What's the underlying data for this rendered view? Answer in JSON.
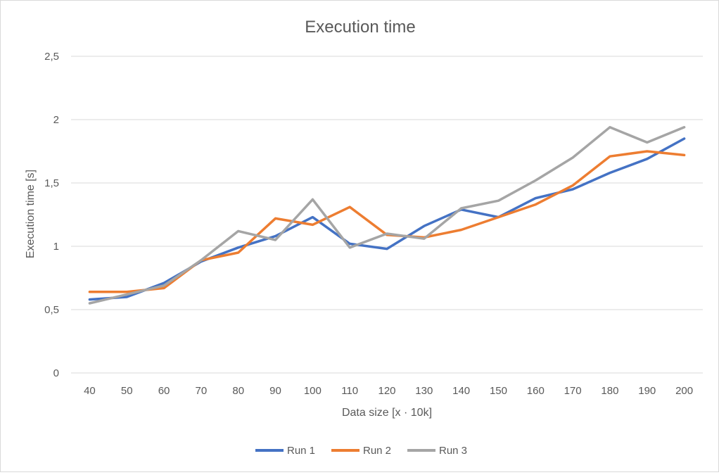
{
  "chart_data": {
    "type": "line",
    "title": "Execution time",
    "xlabel": "Data size [x · 10k]",
    "ylabel": "Execution time [s]",
    "categories": [
      "40",
      "50",
      "60",
      "70",
      "80",
      "90",
      "100",
      "110",
      "120",
      "130",
      "140",
      "150",
      "160",
      "170",
      "180",
      "190",
      "200"
    ],
    "y_ticks": [
      "0",
      "0,5",
      "1",
      "1,5",
      "2",
      "2,5"
    ],
    "y_tick_values": [
      0,
      0.5,
      1,
      1.5,
      2,
      2.5
    ],
    "ylim": [
      0,
      2.5
    ],
    "grid": "horizontal",
    "legend": "bottom",
    "series": [
      {
        "name": "Run 1",
        "color": "#4472C4",
        "values": [
          0.58,
          0.6,
          0.71,
          0.88,
          0.99,
          1.08,
          1.23,
          1.02,
          0.98,
          1.16,
          1.29,
          1.23,
          1.38,
          1.45,
          1.58,
          1.69,
          1.85
        ]
      },
      {
        "name": "Run 2",
        "color": "#ED7D31",
        "values": [
          0.64,
          0.64,
          0.67,
          0.89,
          0.95,
          1.22,
          1.17,
          1.31,
          1.09,
          1.07,
          1.13,
          1.23,
          1.33,
          1.48,
          1.71,
          1.75,
          1.72
        ]
      },
      {
        "name": "Run 3",
        "color": "#A5A5A5",
        "values": [
          0.55,
          0.62,
          0.69,
          0.89,
          1.12,
          1.05,
          1.37,
          0.99,
          1.1,
          1.06,
          1.3,
          1.36,
          1.52,
          1.7,
          1.94,
          1.82,
          1.94
        ]
      }
    ]
  }
}
